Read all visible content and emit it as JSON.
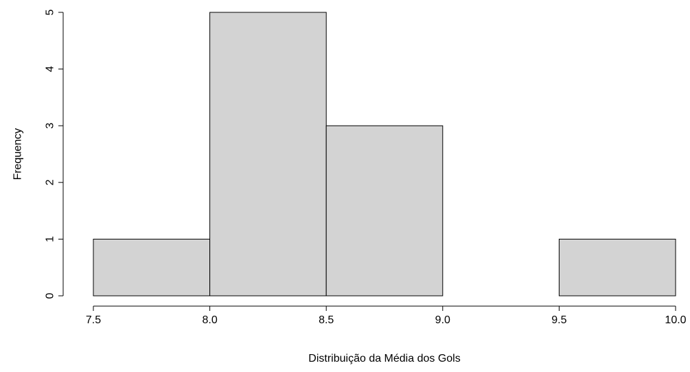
{
  "chart_data": {
    "type": "bar",
    "subtype": "histogram",
    "title": "",
    "xlabel": "Distribuição da Média dos Gols",
    "ylabel": "Frequency",
    "bins": [
      {
        "start": 7.5,
        "end": 8.0,
        "count": 1
      },
      {
        "start": 8.0,
        "end": 8.5,
        "count": 5
      },
      {
        "start": 8.5,
        "end": 9.0,
        "count": 3
      },
      {
        "start": 9.0,
        "end": 9.5,
        "count": 0
      },
      {
        "start": 9.5,
        "end": 10.0,
        "count": 1
      }
    ],
    "xlim": [
      7.5,
      10.0
    ],
    "ylim": [
      0,
      5
    ],
    "x_ticks": [
      "7.5",
      "8.0",
      "8.5",
      "9.0",
      "9.5",
      "10.0"
    ],
    "y_ticks": [
      "0",
      "1",
      "2",
      "3",
      "4",
      "5"
    ],
    "bar_fill": "#d3d3d3",
    "bar_stroke": "#000000",
    "grid": false,
    "legend": "none"
  }
}
